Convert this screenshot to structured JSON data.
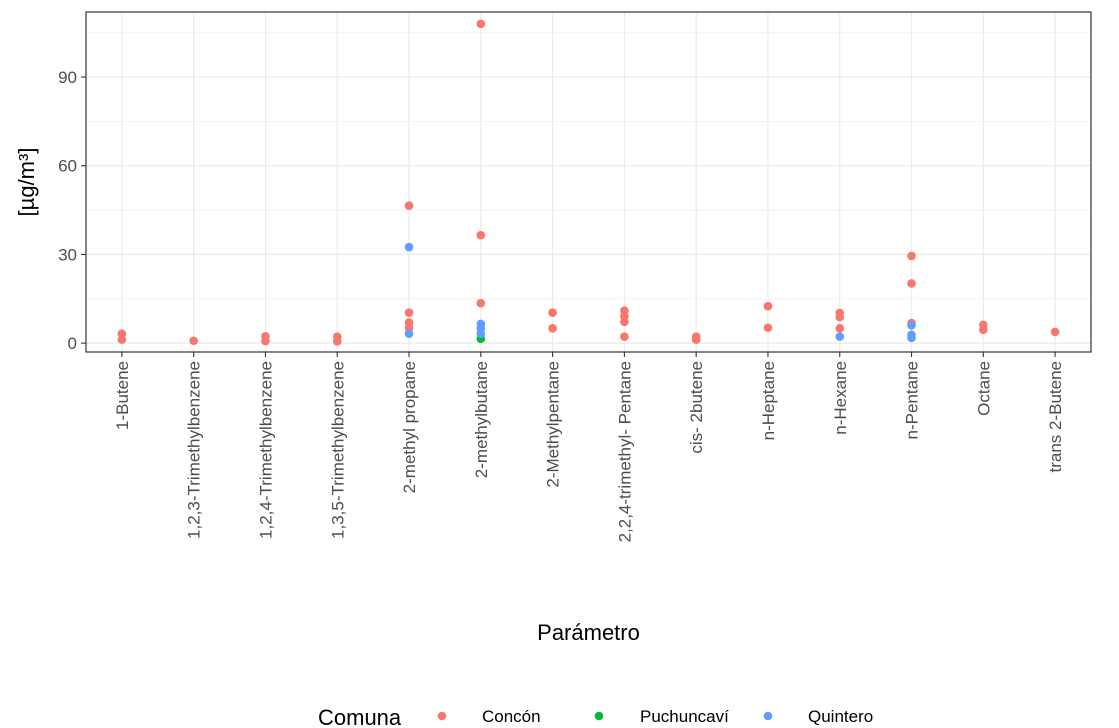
{
  "chart_data": {
    "type": "scatter",
    "xlabel": "Parámetro",
    "ylabel": "[µg/m³]",
    "ylim": [
      -3,
      112
    ],
    "yticks": [
      0,
      30,
      60,
      90
    ],
    "grid": true,
    "legend_position": "bottom",
    "categories": [
      "1-Butene",
      "1,2,3-Trimethylbenzene",
      "1,2,4-Trimethylbenzene",
      "1,3,5-Trimethylbenzene",
      "2-methyl propane",
      "2-methylbutane",
      "2-Methylpentane",
      "2,2,4-trimethyl- Pentane",
      "cis- 2butene",
      "n-Heptane",
      "n-Hexane",
      "n-Pentane",
      "Octane",
      "trans 2-Butene"
    ],
    "legend": {
      "title": "Comuna",
      "entries": [
        {
          "name": "Concón",
          "color": "#F8766D"
        },
        {
          "name": "Puchuncaví",
          "color": "#00BA38"
        },
        {
          "name": "Quintero",
          "color": "#619CFF"
        }
      ]
    },
    "series": [
      {
        "name": "Concón",
        "color": "#F8766D",
        "points": [
          {
            "x": "1-Butene",
            "y": 3.2
          },
          {
            "x": "1-Butene",
            "y": 1.2
          },
          {
            "x": "1,2,3-Trimethylbenzene",
            "y": 0.8
          },
          {
            "x": "1,2,4-Trimethylbenzene",
            "y": 2.3
          },
          {
            "x": "1,2,4-Trimethylbenzene",
            "y": 0.7
          },
          {
            "x": "1,3,5-Trimethylbenzene",
            "y": 2.2
          },
          {
            "x": "1,3,5-Trimethylbenzene",
            "y": 0.6
          },
          {
            "x": "2-methyl propane",
            "y": 46.5
          },
          {
            "x": "2-methyl propane",
            "y": 10.3
          },
          {
            "x": "2-methyl propane",
            "y": 7.0
          },
          {
            "x": "2-methyl propane",
            "y": 5.2
          },
          {
            "x": "2-methylbutane",
            "y": 108
          },
          {
            "x": "2-methylbutane",
            "y": 36.5
          },
          {
            "x": "2-methylbutane",
            "y": 13.5
          },
          {
            "x": "2-Methylpentane",
            "y": 10.3
          },
          {
            "x": "2-Methylpentane",
            "y": 5.0
          },
          {
            "x": "2,2,4-trimethyl- Pentane",
            "y": 11.0
          },
          {
            "x": "2,2,4-trimethyl- Pentane",
            "y": 9.0
          },
          {
            "x": "2,2,4-trimethyl- Pentane",
            "y": 7.2
          },
          {
            "x": "2,2,4-trimethyl- Pentane",
            "y": 2.2
          },
          {
            "x": "cis- 2butene",
            "y": 2.2
          },
          {
            "x": "cis- 2butene",
            "y": 1.2
          },
          {
            "x": "n-Heptane",
            "y": 12.5
          },
          {
            "x": "n-Heptane",
            "y": 5.2
          },
          {
            "x": "n-Hexane",
            "y": 10.2
          },
          {
            "x": "n-Hexane",
            "y": 8.8
          },
          {
            "x": "n-Hexane",
            "y": 5.0
          },
          {
            "x": "n-Pentane",
            "y": 29.5
          },
          {
            "x": "n-Pentane",
            "y": 20.2
          },
          {
            "x": "n-Pentane",
            "y": 6.8
          },
          {
            "x": "Octane",
            "y": 6.2
          },
          {
            "x": "Octane",
            "y": 4.5
          },
          {
            "x": "trans 2-Butene",
            "y": 3.8
          }
        ]
      },
      {
        "name": "Puchuncaví",
        "color": "#00BA38",
        "points": [
          {
            "x": "2-methylbutane",
            "y": 1.5
          }
        ]
      },
      {
        "name": "Quintero",
        "color": "#619CFF",
        "points": [
          {
            "x": "2-methyl propane",
            "y": 32.5
          },
          {
            "x": "2-methyl propane",
            "y": 3.2
          },
          {
            "x": "2-methylbutane",
            "y": 6.5
          },
          {
            "x": "2-methylbutane",
            "y": 5.0
          },
          {
            "x": "2-methylbutane",
            "y": 3.2
          },
          {
            "x": "n-Hexane",
            "y": 2.2
          },
          {
            "x": "n-Pentane",
            "y": 6.0
          },
          {
            "x": "n-Pentane",
            "y": 2.8
          },
          {
            "x": "n-Pentane",
            "y": 1.8
          }
        ]
      }
    ]
  }
}
